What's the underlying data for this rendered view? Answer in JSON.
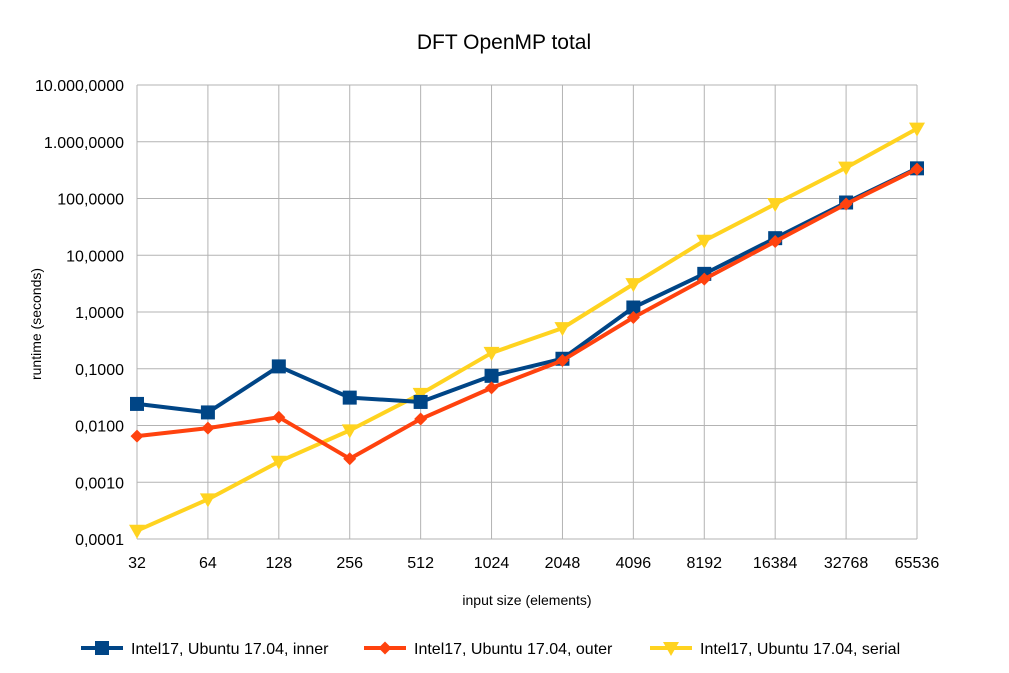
{
  "chart_data": {
    "type": "line",
    "title": "DFT OpenMP total",
    "xlabel": "input size (elements)",
    "ylabel": "runtime (seconds)",
    "y_scale": "log",
    "ylim": [
      0.0001,
      10000
    ],
    "y_ticks": [
      0.0001,
      0.001,
      0.01,
      0.1,
      1,
      10,
      100,
      1000,
      10000
    ],
    "y_tick_labels": [
      "0,0001",
      "0,0010",
      "0,0100",
      "0,1000",
      "1,0000",
      "10,0000",
      "100,0000",
      "1.000,0000",
      "10.000,0000"
    ],
    "categories": [
      "32",
      "64",
      "128",
      "256",
      "512",
      "1024",
      "2048",
      "4096",
      "8192",
      "16384",
      "32768",
      "65536"
    ],
    "grid": true,
    "legend_position": "bottom",
    "series": [
      {
        "name": "Intel17, Ubuntu 17.04, inner",
        "color": "#004586",
        "marker": "square",
        "values": [
          0.024,
          0.017,
          0.11,
          0.031,
          0.026,
          0.075,
          0.15,
          1.2,
          4.7,
          20,
          85,
          340
        ]
      },
      {
        "name": "Intel17, Ubuntu 17.04, outer",
        "color": "#ff420e",
        "marker": "diamond",
        "values": [
          0.0065,
          0.009,
          0.014,
          0.0026,
          0.013,
          0.046,
          0.14,
          0.8,
          3.8,
          17.5,
          80,
          330
        ]
      },
      {
        "name": "Intel17, Ubuntu 17.04, serial",
        "color": "#ffd320",
        "marker": "triangle-down",
        "values": [
          0.00014,
          0.0005,
          0.0023,
          0.0082,
          0.036,
          0.19,
          0.52,
          3.1,
          18,
          80,
          350,
          1700
        ]
      }
    ]
  }
}
